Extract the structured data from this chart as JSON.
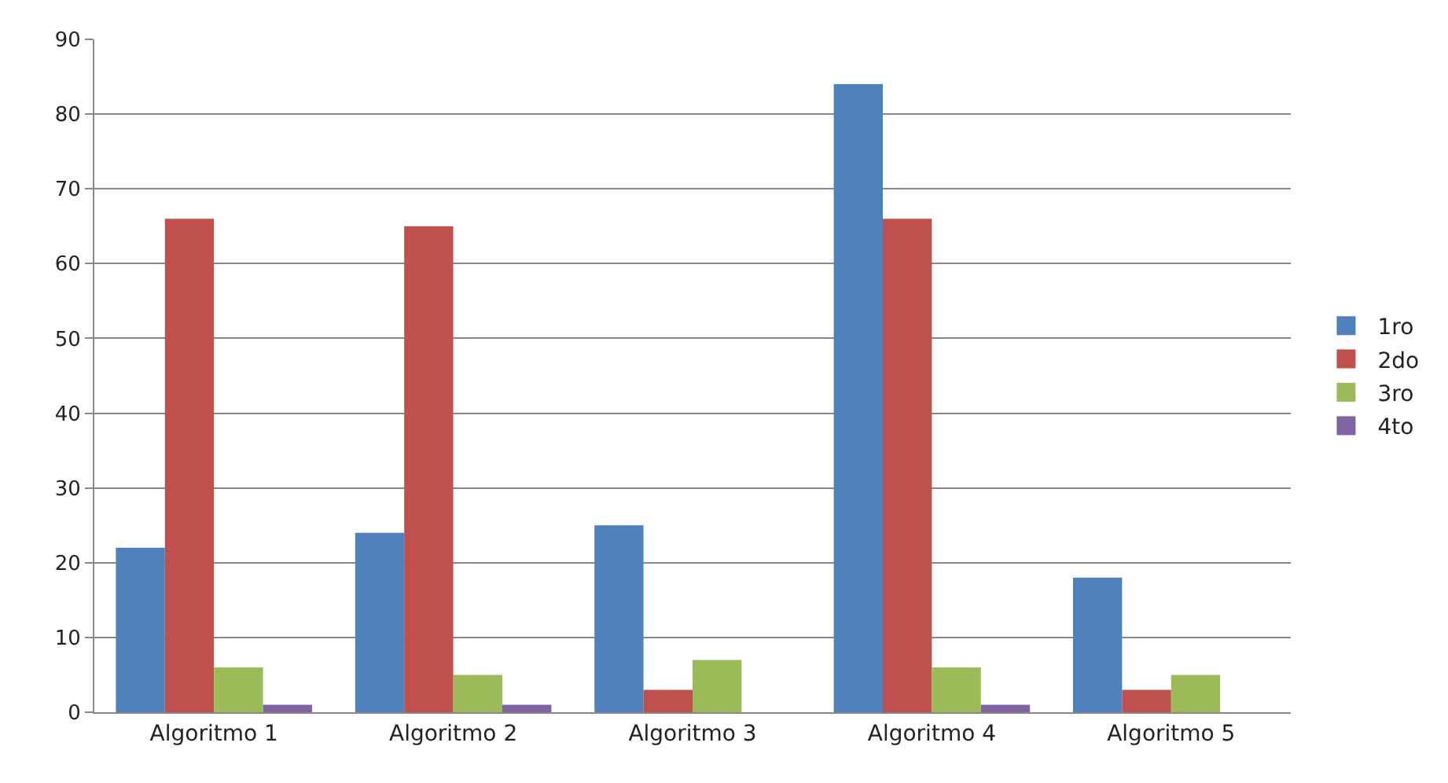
{
  "chart_data": {
    "type": "bar",
    "categories": [
      "Algoritmo 1",
      "Algoritmo 2",
      "Algoritmo 3",
      "Algoritmo 4",
      "Algoritmo 5"
    ],
    "series": [
      {
        "name": "1ro",
        "color": "#4f81bd",
        "values": [
          22,
          24,
          25,
          84,
          18
        ]
      },
      {
        "name": "2do",
        "color": "#c0504d",
        "values": [
          66,
          65,
          3,
          66,
          3
        ]
      },
      {
        "name": "3ro",
        "color": "#9bbb59",
        "values": [
          6,
          5,
          7,
          6,
          5
        ]
      },
      {
        "name": "4to",
        "color": "#8064a2",
        "values": [
          1,
          1,
          null,
          1,
          null
        ]
      }
    ],
    "ylim": [
      0,
      90
    ],
    "yticks": [
      0,
      10,
      20,
      30,
      40,
      50,
      60,
      70,
      80,
      90
    ],
    "grid": "y",
    "legend": "right"
  }
}
